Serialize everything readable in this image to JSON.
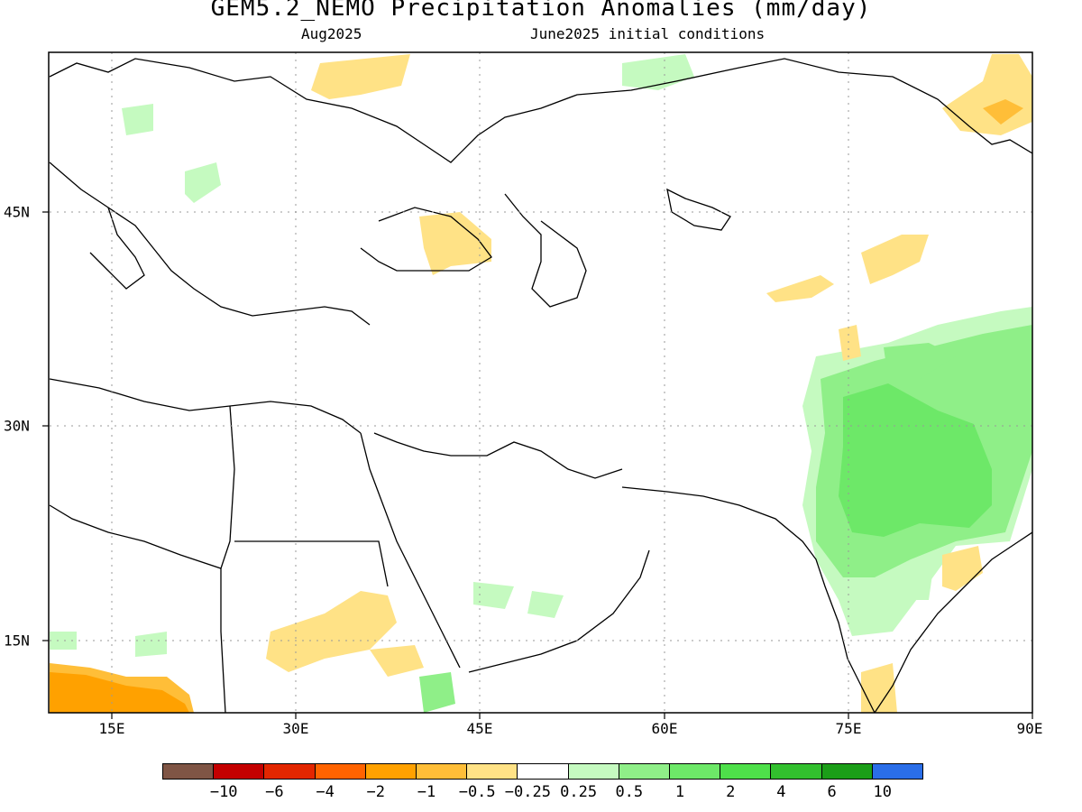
{
  "header": {
    "title": "GEM5.2_NEMO Precipitation Anomalies (mm/day)",
    "month": "Aug2025",
    "init": "June2025 initial conditions"
  },
  "axes": {
    "lon_ticks": [
      "15E",
      "30E",
      "45E",
      "60E",
      "75E",
      "90E"
    ],
    "lat_ticks": [
      "45N",
      "30N",
      "15N"
    ]
  },
  "legend": {
    "colors": [
      "#7f5545",
      "#c40000",
      "#e32600",
      "#ff6300",
      "#ffa100",
      "#ffbe38",
      "#ffe286",
      "#ffffff",
      "#c5fac0",
      "#8fef88",
      "#6de868",
      "#4ee04a",
      "#32c02e",
      "#1b9e18",
      "#2a6ee8"
    ],
    "labels": [
      "−10",
      "−6",
      "−4",
      "−2",
      "−1",
      "−0.5",
      "−0.25",
      "0.25",
      "0.5",
      "1",
      "2",
      "4",
      "6",
      "10"
    ]
  }
}
